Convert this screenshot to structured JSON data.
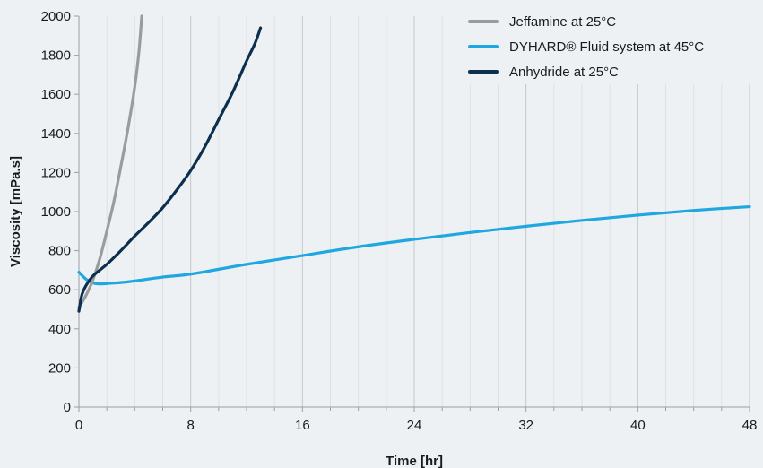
{
  "chart_data": {
    "type": "line",
    "title": "",
    "xlabel": "Time [hr]",
    "ylabel": "Viscosity [mPa.s]",
    "xlim": [
      0,
      48
    ],
    "ylim": [
      0,
      2000
    ],
    "x_ticks": [
      0,
      8,
      16,
      24,
      32,
      40,
      48
    ],
    "y_ticks": [
      0,
      200,
      400,
      600,
      800,
      1000,
      1200,
      1400,
      1600,
      1800,
      2000
    ],
    "grid": "vertical major and minor lines",
    "legend_position": "top-right",
    "series": [
      {
        "name": "Jeffamine at 25°C",
        "color": "#9b9b9b",
        "x": [
          0,
          0.5,
          1,
          1.5,
          2,
          2.5,
          3,
          3.5,
          4,
          4.3,
          4.5
        ],
        "y": [
          510,
          570,
          650,
          760,
          900,
          1050,
          1230,
          1420,
          1640,
          1820,
          2000
        ]
      },
      {
        "name": "DYHARD® Fluid system at 45°C",
        "color": "#1ea7e1",
        "x": [
          0,
          0.5,
          1,
          1.5,
          2,
          3,
          4,
          6,
          8,
          12,
          16,
          20,
          24,
          28,
          32,
          36,
          40,
          44,
          48
        ],
        "y": [
          690,
          655,
          635,
          630,
          632,
          637,
          645,
          665,
          680,
          730,
          775,
          820,
          858,
          893,
          925,
          955,
          982,
          1006,
          1025
        ]
      },
      {
        "name": "Anhydride at 25°C",
        "color": "#0d2f4f",
        "x": [
          0,
          0.2,
          0.5,
          1,
          2,
          3,
          4,
          5,
          6,
          7,
          8,
          9,
          10,
          11,
          12,
          12.6,
          13
        ],
        "y": [
          490,
          570,
          620,
          670,
          730,
          800,
          875,
          945,
          1020,
          1110,
          1210,
          1330,
          1470,
          1610,
          1770,
          1860,
          1940
        ]
      }
    ]
  }
}
